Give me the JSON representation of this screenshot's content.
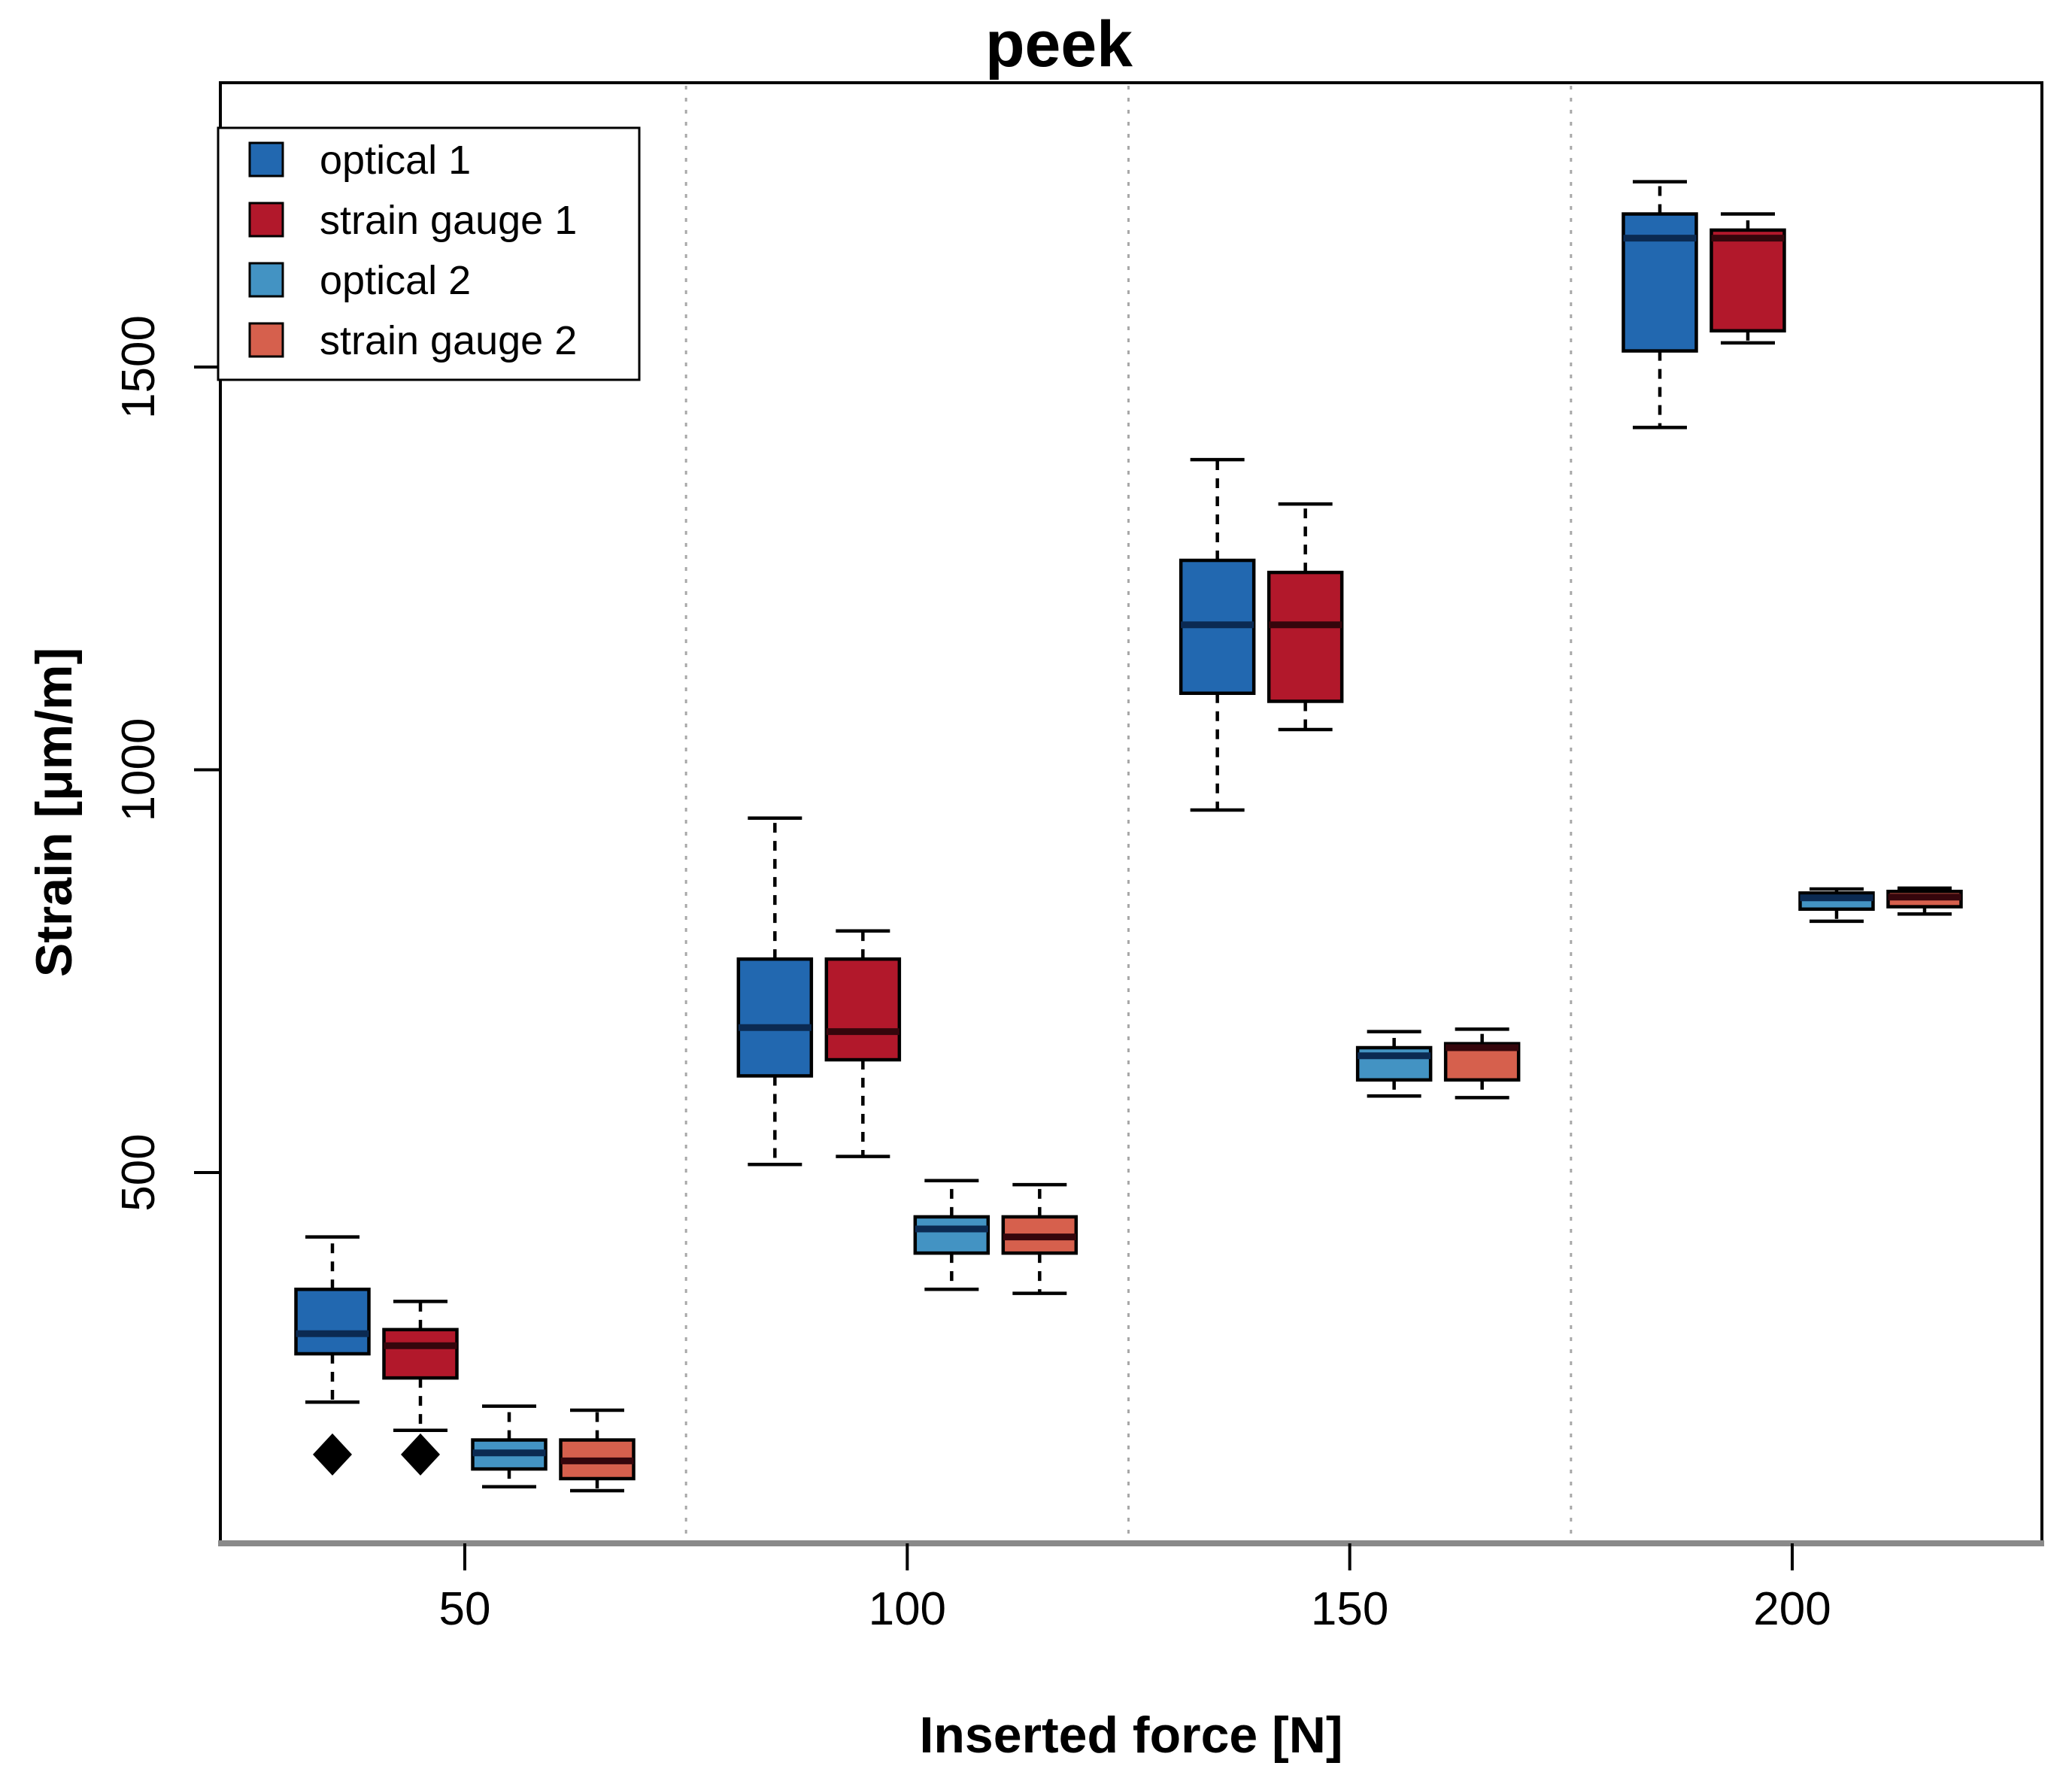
{
  "title": "peek",
  "axes": {
    "x_label": "Inserted force [N]",
    "y_label": "Strain [μm/m]",
    "x_tick_labels": [
      "50",
      "100",
      "150",
      "200"
    ],
    "y_tick_labels": [
      "500",
      "1000",
      "1500"
    ]
  },
  "legend": {
    "items": [
      {
        "label": "optical 1",
        "color": "#2268B0"
      },
      {
        "label": "strain gauge 1",
        "color": "#B2182B"
      },
      {
        "label": "optical 2",
        "color": "#4393C3"
      },
      {
        "label": "strain gauge 2",
        "color": "#D6604D"
      }
    ]
  },
  "chart_data": {
    "type": "boxplot",
    "title": "peek",
    "xlabel": "Inserted force [N]",
    "ylabel": "Strain [μm/m]",
    "x_categories": [
      50,
      100,
      150,
      200
    ],
    "y_ticks": [
      500,
      1000,
      1500
    ],
    "ylim": [
      40,
      1855
    ],
    "grid": false,
    "legend_position": "top-left",
    "group_separators_x": [
      75,
      125,
      175
    ],
    "series": [
      {
        "name": "optical 1",
        "color": "#2268B0",
        "median_color": "#0b2a52",
        "boxes": [
          {
            "x": 50,
            "low": 215,
            "q1": 275,
            "median": 300,
            "q3": 355,
            "high": 420,
            "outliers": [
              150
            ]
          },
          {
            "x": 100,
            "low": 510,
            "q1": 620,
            "median": 680,
            "q3": 765,
            "high": 940,
            "outliers": []
          },
          {
            "x": 150,
            "low": 950,
            "q1": 1095,
            "median": 1180,
            "q3": 1260,
            "high": 1385,
            "outliers": []
          },
          {
            "x": 200,
            "low": 1425,
            "q1": 1520,
            "median": 1660,
            "q3": 1690,
            "high": 1730,
            "outliers": []
          }
        ]
      },
      {
        "name": "strain gauge 1",
        "color": "#B2182B",
        "median_color": "#35060c",
        "boxes": [
          {
            "x": 50,
            "low": 180,
            "q1": 245,
            "median": 285,
            "q3": 305,
            "high": 340,
            "outliers": [
              150
            ]
          },
          {
            "x": 100,
            "low": 520,
            "q1": 640,
            "median": 675,
            "q3": 765,
            "high": 800,
            "outliers": []
          },
          {
            "x": 150,
            "low": 1050,
            "q1": 1085,
            "median": 1180,
            "q3": 1245,
            "high": 1330,
            "outliers": []
          },
          {
            "x": 200,
            "low": 1530,
            "q1": 1545,
            "median": 1660,
            "q3": 1670,
            "high": 1690,
            "outliers": []
          }
        ]
      },
      {
        "name": "optical 2",
        "color": "#4393C3",
        "median_color": "#0b2a52",
        "boxes": [
          {
            "x": 50,
            "low": 110,
            "q1": 132,
            "median": 152,
            "q3": 168,
            "high": 210,
            "outliers": []
          },
          {
            "x": 100,
            "low": 355,
            "q1": 400,
            "median": 430,
            "q3": 445,
            "high": 490,
            "outliers": []
          },
          {
            "x": 150,
            "low": 595,
            "q1": 615,
            "median": 645,
            "q3": 655,
            "high": 675,
            "outliers": []
          },
          {
            "x": 200,
            "low": 812,
            "q1": 827,
            "median": 841,
            "q3": 847,
            "high": 852,
            "outliers": []
          }
        ]
      },
      {
        "name": "strain gauge 2",
        "color": "#D6604D",
        "median_color": "#35060c",
        "boxes": [
          {
            "x": 50,
            "low": 105,
            "q1": 120,
            "median": 142,
            "q3": 168,
            "high": 205,
            "outliers": []
          },
          {
            "x": 100,
            "low": 350,
            "q1": 400,
            "median": 420,
            "q3": 445,
            "high": 485,
            "outliers": []
          },
          {
            "x": 150,
            "low": 593,
            "q1": 615,
            "median": 655,
            "q3": 660,
            "high": 678,
            "outliers": []
          },
          {
            "x": 200,
            "low": 821,
            "q1": 830,
            "median": 842,
            "q3": 849,
            "high": 853,
            "outliers": []
          }
        ]
      }
    ]
  }
}
